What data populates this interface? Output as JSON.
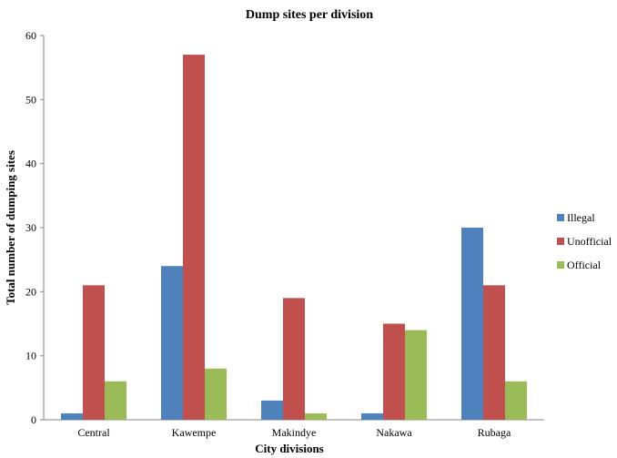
{
  "chart_data": {
    "type": "bar",
    "title": "Dump sites per division",
    "xlabel": "City divisions",
    "ylabel": "Total number of dumping sites",
    "categories": [
      "Central",
      "Kawempe",
      "Makindye",
      "Nakawa",
      "Rubaga"
    ],
    "series": [
      {
        "name": "Illegal",
        "color": "#4f81bd",
        "values": [
          1,
          24,
          3,
          1,
          30
        ]
      },
      {
        "name": "Unofficial",
        "color": "#c0504d",
        "values": [
          21,
          57,
          19,
          15,
          21
        ]
      },
      {
        "name": "Official",
        "color": "#9bbb59",
        "values": [
          6,
          8,
          1,
          14,
          6
        ]
      }
    ],
    "ylim": [
      0,
      60
    ],
    "yticks": [
      0,
      10,
      20,
      30,
      40,
      50,
      60
    ],
    "grid": false,
    "legend": "right"
  }
}
